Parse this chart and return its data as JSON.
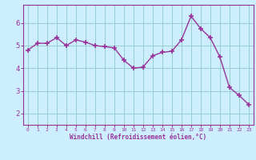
{
  "x": [
    0,
    1,
    2,
    3,
    4,
    5,
    6,
    7,
    8,
    9,
    10,
    11,
    12,
    13,
    14,
    15,
    16,
    17,
    18,
    19,
    20,
    21,
    22,
    23
  ],
  "y": [
    4.8,
    5.1,
    5.1,
    5.35,
    5.0,
    5.25,
    5.15,
    5.0,
    4.95,
    4.9,
    4.35,
    4.0,
    4.05,
    4.55,
    4.7,
    4.75,
    5.25,
    6.3,
    5.75,
    5.35,
    4.5,
    3.15,
    2.8,
    2.4
  ],
  "line_color": "#993399",
  "marker_color": "#993399",
  "bg_color": "#cceeff",
  "grid_color": "#99cccc",
  "xlabel": "Windchill (Refroidissement éolien,°C)",
  "xlabel_color": "#993399",
  "tick_color": "#993399",
  "spine_color": "#993399",
  "ylim": [
    1.5,
    6.8
  ],
  "xlim": [
    -0.5,
    23.5
  ],
  "yticks": [
    2,
    3,
    4,
    5,
    6
  ],
  "xticks": [
    0,
    1,
    2,
    3,
    4,
    5,
    6,
    7,
    8,
    9,
    10,
    11,
    12,
    13,
    14,
    15,
    16,
    17,
    18,
    19,
    20,
    21,
    22,
    23
  ]
}
